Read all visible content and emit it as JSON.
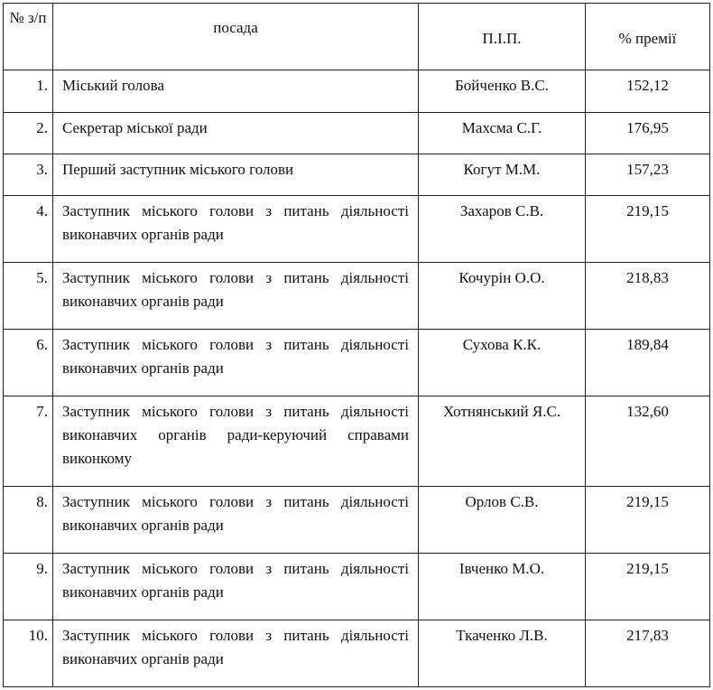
{
  "header": {
    "num": "№ з/п",
    "position": "посада",
    "name": "П.І.П.",
    "bonus": "% премії"
  },
  "rows": [
    {
      "num": "1.",
      "position": "Міський голова",
      "name": "Бойченко В.С.",
      "bonus": "152,12"
    },
    {
      "num": "2.",
      "position": "Секретар міської ради",
      "name": "Махсма С.Г.",
      "bonus": "176,95"
    },
    {
      "num": "3.",
      "position": "Перший заступник міського голови",
      "name": "Когут М.М.",
      "bonus": "157,23"
    },
    {
      "num": "4.",
      "position": "Заступник міського голови з питань діяльності виконавчих органів ради",
      "name": "Захаров С.В.",
      "bonus": "219,15"
    },
    {
      "num": "5.",
      "position": "Заступник міського голови з питань діяльності виконавчих органів ради",
      "name": "Кочурін О.О.",
      "bonus": "218,83"
    },
    {
      "num": "6.",
      "position": "Заступник міського голови з питань діяльності виконавчих органів ради",
      "name": "Сухова К.К.",
      "bonus": "189,84"
    },
    {
      "num": "7.",
      "position": "Заступник міського голови з питань діяльності виконавчих органів ради-керуючий справами виконкому",
      "name": "Хотнянський Я.С.",
      "bonus": "132,60"
    },
    {
      "num": "8.",
      "position": "Заступник міського голови з питань діяльності виконавчих органів ради",
      "name": "Орлов С.В.",
      "bonus": "219,15"
    },
    {
      "num": "9.",
      "position": "Заступник міського голови з питань діяльності виконавчих органів ради",
      "name": "Івченко М.О.",
      "bonus": "219,15"
    },
    {
      "num": "10.",
      "position": "Заступник міського голови з питань діяльності виконавчих органів ради",
      "name": "Ткаченко Л.В.",
      "bonus": "217,83"
    }
  ]
}
